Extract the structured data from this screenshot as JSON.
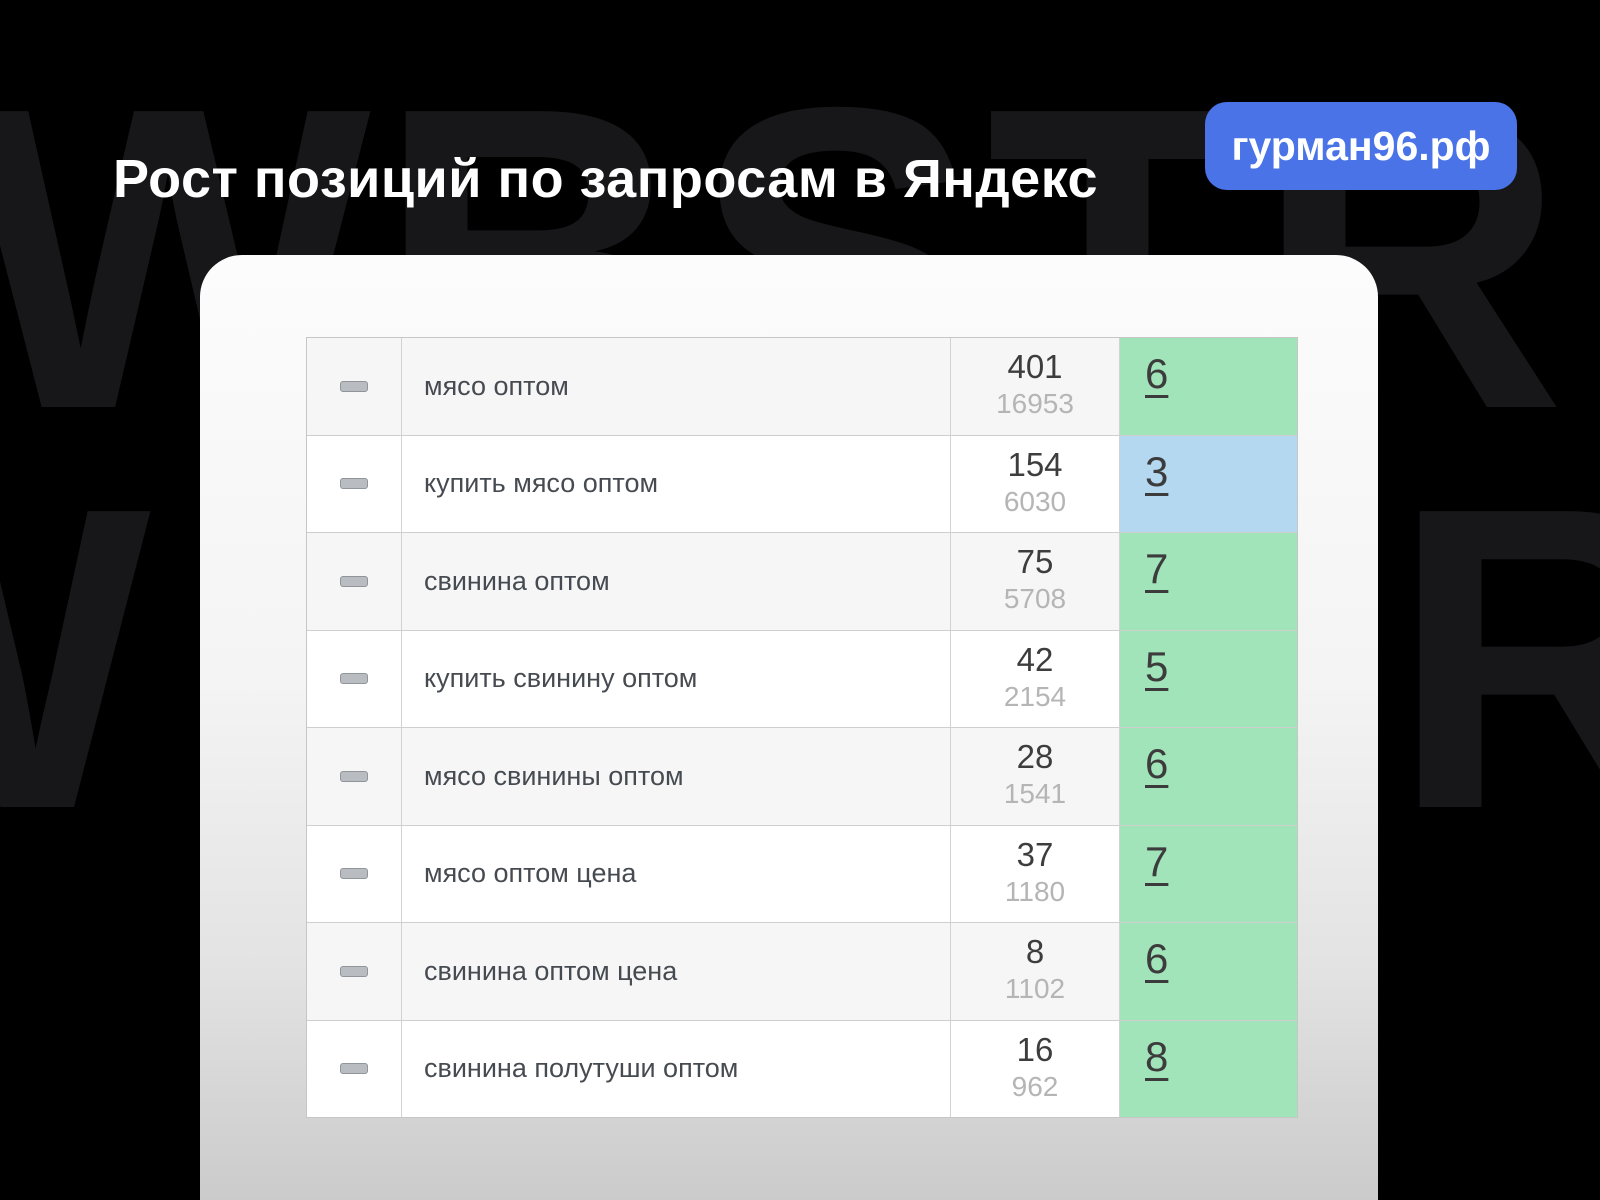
{
  "page": {
    "title": "Рост позиций по запросам в Яндекс",
    "badge_label": "гурман96.рф",
    "watermark_text": "WBSTR"
  },
  "colors": {
    "background": "#000000",
    "watermark": "#17171a",
    "badge_blue": "#4a73e8",
    "position_green": "#a2e4ba",
    "position_blue": "#b4d8f0"
  },
  "table": {
    "rows": [
      {
        "keyword": "мясо оптом",
        "frequency": "401",
        "frequency_exact": "16953",
        "position": "6",
        "highlight": "green"
      },
      {
        "keyword": "купить мясо оптом",
        "frequency": "154",
        "frequency_exact": "6030",
        "position": "3",
        "highlight": "blue"
      },
      {
        "keyword": "свинина оптом",
        "frequency": "75",
        "frequency_exact": "5708",
        "position": "7",
        "highlight": "green"
      },
      {
        "keyword": "купить свинину оптом",
        "frequency": "42",
        "frequency_exact": "2154",
        "position": "5",
        "highlight": "green"
      },
      {
        "keyword": "мясо свинины оптом",
        "frequency": "28",
        "frequency_exact": "1541",
        "position": "6",
        "highlight": "green"
      },
      {
        "keyword": "мясо оптом цена",
        "frequency": "37",
        "frequency_exact": "1180",
        "position": "7",
        "highlight": "green"
      },
      {
        "keyword": "свинина оптом цена",
        "frequency": "8",
        "frequency_exact": "1102",
        "position": "6",
        "highlight": "green"
      },
      {
        "keyword": "свинина полутуши оптом",
        "frequency": "16",
        "frequency_exact": "962",
        "position": "8",
        "highlight": "green"
      }
    ]
  }
}
